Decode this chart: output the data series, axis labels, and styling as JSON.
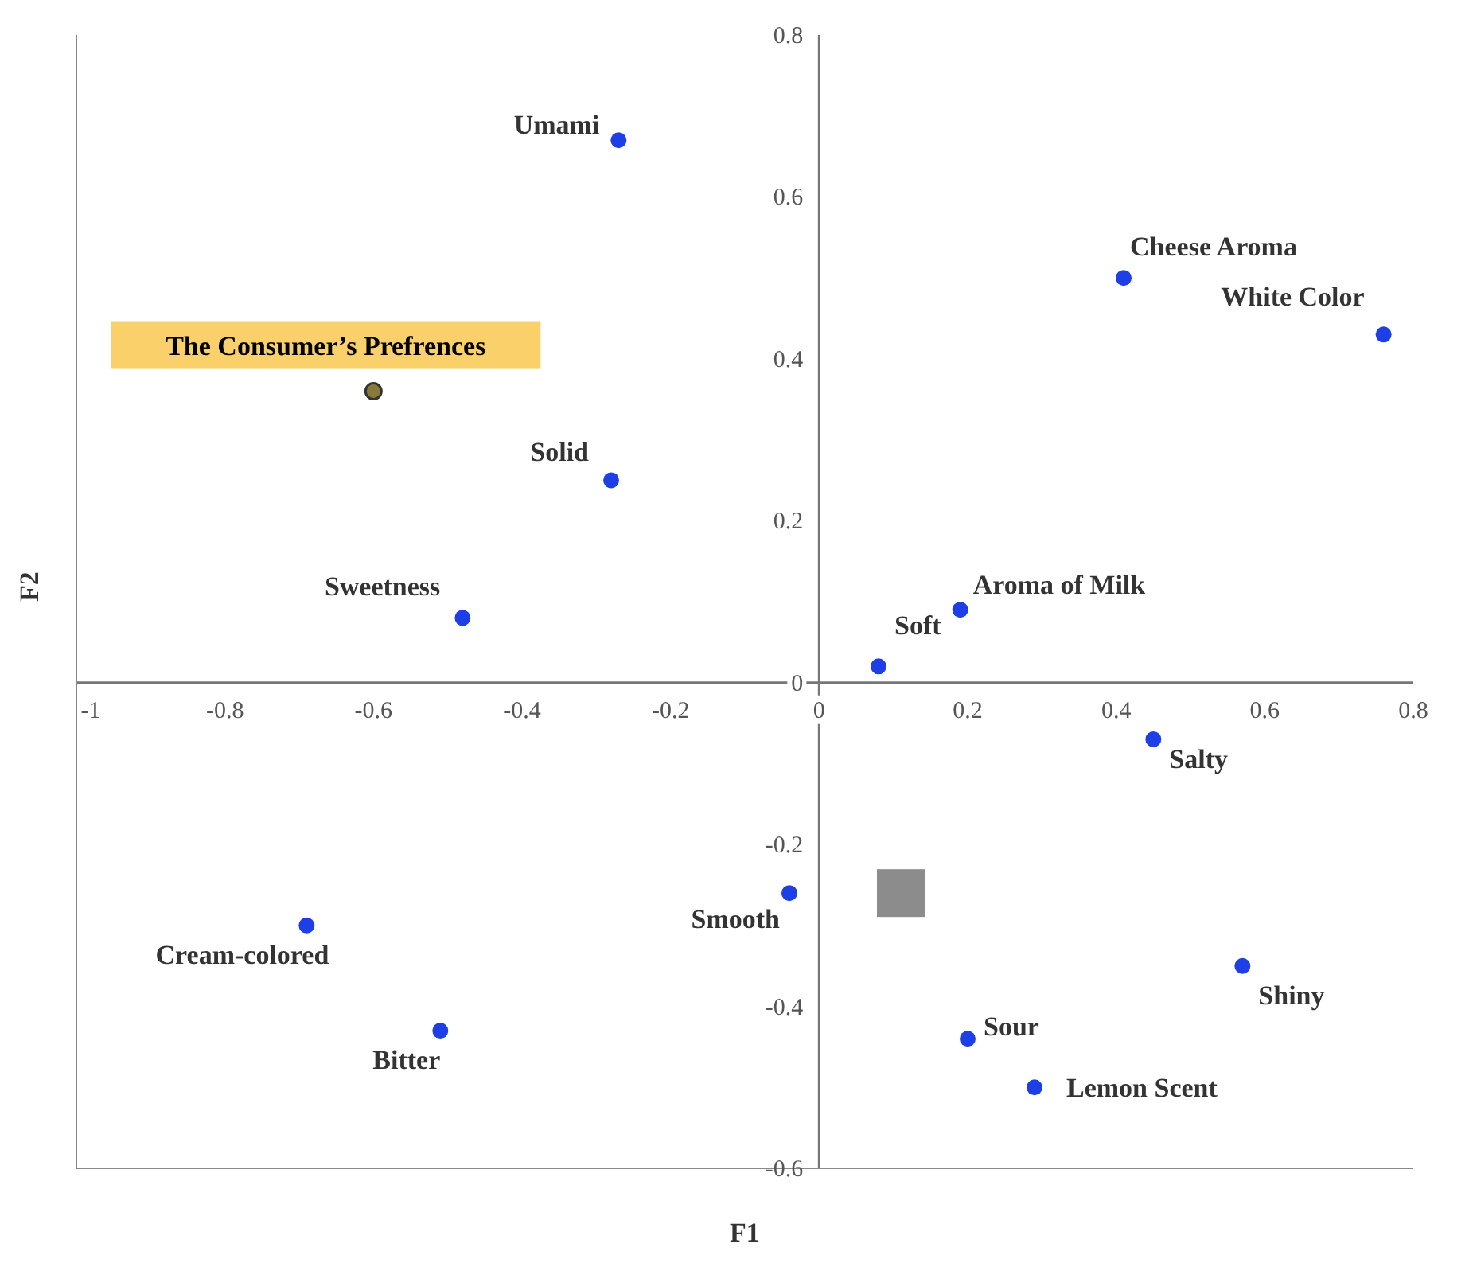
{
  "chart_data": {
    "type": "scatter",
    "xlabel": "F1",
    "ylabel": "F2",
    "xlim": [
      -1,
      0.8
    ],
    "ylim": [
      -0.6,
      0.8
    ],
    "xticks": [
      -1,
      -0.8,
      -0.6,
      -0.4,
      -0.2,
      0,
      0.2,
      0.4,
      0.6,
      0.8
    ],
    "yticks": [
      -0.6,
      -0.4,
      -0.2,
      0,
      0.2,
      0.4,
      0.6,
      0.8
    ],
    "grid": false,
    "legend": false,
    "series": [
      {
        "color": "#1f3fe6",
        "marker": "circle",
        "x": [
          -0.27,
          0.41,
          0.76,
          -0.28,
          -0.48,
          0.19,
          0.08,
          0.45,
          -0.04,
          -0.69,
          0.57,
          -0.51,
          0.2,
          0.29
        ],
        "values": [
          0.67,
          0.5,
          0.43,
          0.25,
          0.08,
          0.09,
          0.02,
          -0.07,
          -0.26,
          -0.3,
          -0.35,
          -0.43,
          -0.44,
          -0.5
        ]
      },
      {
        "name": "The Consumer’s Prefrences",
        "color": "#8a7a3a",
        "marker": "circle",
        "x": [
          -0.6
        ],
        "values": [
          0.36
        ]
      },
      {
        "color": "#8c8c8c",
        "marker": "square",
        "x": [
          0.11
        ],
        "values": [
          -0.26
        ]
      }
    ],
    "annotations": [
      {
        "text": "Umami",
        "x": -0.27,
        "y": 0.67
      },
      {
        "text": "Cheese Aroma",
        "x": 0.41,
        "y": 0.5
      },
      {
        "text": "White Color",
        "x": 0.76,
        "y": 0.43
      },
      {
        "text": "Solid",
        "x": -0.28,
        "y": 0.25
      },
      {
        "text": "Sweetness",
        "x": -0.48,
        "y": 0.08
      },
      {
        "text": "Aroma of Milk",
        "x": 0.19,
        "y": 0.09
      },
      {
        "text": "Soft",
        "x": 0.08,
        "y": 0.02
      },
      {
        "text": "Salty",
        "x": 0.45,
        "y": -0.07
      },
      {
        "text": "Smooth",
        "x": -0.04,
        "y": -0.26
      },
      {
        "text": "Cream-colored",
        "x": -0.69,
        "y": -0.3
      },
      {
        "text": "Shiny",
        "x": 0.57,
        "y": -0.35
      },
      {
        "text": "Bitter",
        "x": -0.51,
        "y": -0.43
      },
      {
        "text": "Sour",
        "x": 0.2,
        "y": -0.44
      },
      {
        "text": "Lemon Scent",
        "x": 0.29,
        "y": -0.5
      }
    ]
  }
}
